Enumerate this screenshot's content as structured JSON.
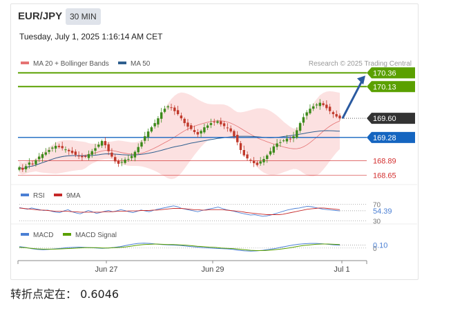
{
  "header": {
    "pair": "EUR/JPY",
    "timeframe": "30 MIN",
    "timestamp": "Tuesday, July 1, 2025 1:16:14 AM CET"
  },
  "footer": {
    "pivot_text": "转折点定在： 0.6046"
  },
  "colors": {
    "ma20": "#e57373",
    "ma50": "#2f5f8f",
    "green": "#5aa000",
    "blue_level": "#1565c0",
    "red_level": "#d32f2f",
    "band": "#fcdede",
    "bull": "#3c8a1a",
    "bear": "#c0392b",
    "rsi": "#4a7fd4",
    "rsi_ma": "#c62828",
    "macd": "#4a7fd4",
    "macd_signal": "#5aa000",
    "current_tag": "#333333",
    "arrow": "#2a5aa0"
  },
  "chart_data": [
    {
      "type": "candlestick",
      "legend": [
        {
          "label": "MA 20 + Bollinger Bands",
          "color": "#e57373"
        },
        {
          "label": "MA 50",
          "color": "#2f5f8f"
        }
      ],
      "legend_placement": "top-left",
      "watermark": "Research © 2025 Trading Central",
      "ylim": [
        168.55,
        170.48
      ],
      "x_ticks": [
        "Jun 27",
        "Jun 29",
        "Jul 1"
      ],
      "levels": [
        {
          "label": "170.36",
          "value": 170.36,
          "style": "green"
        },
        {
          "label": "170.13",
          "value": 170.13,
          "style": "green"
        },
        {
          "label": "169.60",
          "value": 169.6,
          "style": "current"
        },
        {
          "label": "169.28",
          "value": 169.28,
          "style": "blue"
        },
        {
          "label": "168.89",
          "value": 168.89,
          "style": "red"
        },
        {
          "label": "168.65",
          "value": 168.65,
          "style": "red"
        }
      ],
      "closes": [
        168.78,
        168.74,
        168.8,
        168.86,
        168.83,
        168.9,
        168.96,
        169.0,
        169.03,
        169.07,
        169.11,
        169.14,
        169.12,
        169.1,
        169.08,
        169.05,
        169.02,
        168.99,
        168.97,
        168.95,
        168.96,
        169.0,
        169.05,
        169.1,
        169.16,
        169.22,
        169.15,
        169.05,
        168.96,
        168.88,
        168.84,
        168.87,
        168.91,
        168.92,
        168.97,
        169.04,
        169.12,
        169.2,
        169.3,
        169.38,
        169.45,
        169.52,
        169.6,
        169.7,
        169.76,
        169.8,
        169.78,
        169.72,
        169.67,
        169.6,
        169.52,
        169.46,
        169.42,
        169.37,
        169.33,
        169.39,
        169.45,
        169.48,
        169.52,
        169.54,
        169.55,
        169.5,
        169.47,
        169.44,
        169.38,
        169.3,
        169.2,
        169.07,
        168.98,
        168.93,
        168.9,
        168.85,
        168.82,
        168.88,
        168.92,
        168.98,
        169.05,
        169.13,
        169.18,
        169.2,
        169.23,
        169.26,
        169.25,
        169.3,
        169.4,
        169.52,
        169.62,
        169.7,
        169.76,
        169.8,
        169.83,
        169.86,
        169.82,
        169.77,
        169.72,
        169.67,
        169.63,
        169.6
      ]
    },
    {
      "type": "line",
      "title": "RSI",
      "legend": [
        {
          "label": "RSI",
          "color": "#4a7fd4"
        },
        {
          "label": "9MA",
          "color": "#c62828"
        }
      ],
      "ylim": [
        26,
        74
      ],
      "y_ticks": [
        70,
        30
      ],
      "current": {
        "label": "54.39",
        "value": 54.39
      },
      "series": [
        {
          "name": "RSI",
          "values": [
            62,
            60,
            58,
            61,
            59,
            57,
            55,
            56,
            53,
            51,
            50,
            54,
            57,
            52,
            49,
            47,
            51,
            55,
            52,
            48,
            50,
            53,
            55,
            52,
            54,
            57,
            55,
            52,
            50,
            53,
            56,
            54,
            52,
            55,
            58,
            60,
            62,
            64,
            66,
            64,
            60,
            58,
            56,
            54,
            52,
            55,
            57,
            59,
            61,
            63,
            60,
            57,
            55,
            53,
            50,
            48,
            46,
            44,
            45,
            43,
            41,
            42,
            44,
            47,
            50,
            53,
            56,
            58,
            60,
            61,
            63,
            65,
            64,
            62,
            60,
            58,
            57,
            56,
            55,
            54
          ]
        },
        {
          "name": "9MA",
          "values": [
            61,
            60,
            59,
            58,
            57,
            56,
            56,
            55,
            54,
            53,
            53,
            53,
            53,
            52,
            52,
            51,
            51,
            51,
            51,
            51,
            51,
            52,
            52,
            52,
            53,
            53,
            53,
            54,
            54,
            54,
            55,
            55,
            55,
            56,
            56,
            57,
            58,
            59,
            60,
            60,
            60,
            59,
            58,
            57,
            57,
            56,
            56,
            57,
            57,
            57,
            57,
            56,
            55,
            54,
            53,
            52,
            50,
            49,
            48,
            47,
            46,
            45,
            45,
            45,
            45,
            46,
            48,
            50,
            52,
            54,
            56,
            58,
            59,
            60,
            61,
            61,
            60,
            59,
            58,
            57
          ]
        }
      ]
    },
    {
      "type": "line",
      "title": "MACD",
      "legend": [
        {
          "label": "MACD",
          "color": "#4a7fd4"
        },
        {
          "label": "MACD Signal",
          "color": "#5aa000"
        }
      ],
      "ylim": [
        -0.32,
        0.26
      ],
      "y_ticks": [
        0
      ],
      "current": {
        "label": "0.10",
        "value": 0.1
      },
      "series": [
        {
          "name": "MACD",
          "values": [
            0.05,
            0.02,
            -0.02,
            -0.05,
            -0.06,
            -0.05,
            -0.03,
            -0.01,
            0.01,
            0.02,
            0.03,
            0.02,
            0.01,
            0.0,
            -0.01,
            0.0,
            0.02,
            0.05,
            0.09,
            0.13,
            0.16,
            0.17,
            0.16,
            0.14,
            0.12,
            0.11,
            0.1,
            0.09,
            0.07,
            0.05,
            0.03,
            0.01,
            0.0,
            -0.01,
            -0.02,
            -0.03,
            -0.05,
            -0.08,
            -0.1,
            -0.11,
            -0.1,
            -0.08,
            -0.05,
            -0.02,
            0.02,
            0.06,
            0.1,
            0.13,
            0.15,
            0.16,
            0.16,
            0.15,
            0.13,
            0.11,
            0.1
          ]
        },
        {
          "name": "MACD Signal",
          "values": [
            0.02,
            0.01,
            -0.01,
            -0.03,
            -0.04,
            -0.04,
            -0.04,
            -0.03,
            -0.02,
            -0.01,
            0.0,
            0.01,
            0.01,
            0.01,
            0.0,
            0.0,
            0.01,
            0.02,
            0.04,
            0.07,
            0.1,
            0.12,
            0.13,
            0.14,
            0.13,
            0.12,
            0.12,
            0.11,
            0.1,
            0.08,
            0.06,
            0.05,
            0.03,
            0.02,
            0.0,
            -0.01,
            -0.02,
            -0.04,
            -0.06,
            -0.08,
            -0.09,
            -0.09,
            -0.08,
            -0.06,
            -0.04,
            -0.01,
            0.02,
            0.06,
            0.09,
            0.11,
            0.13,
            0.14,
            0.14,
            0.13,
            0.12
          ]
        }
      ]
    }
  ]
}
